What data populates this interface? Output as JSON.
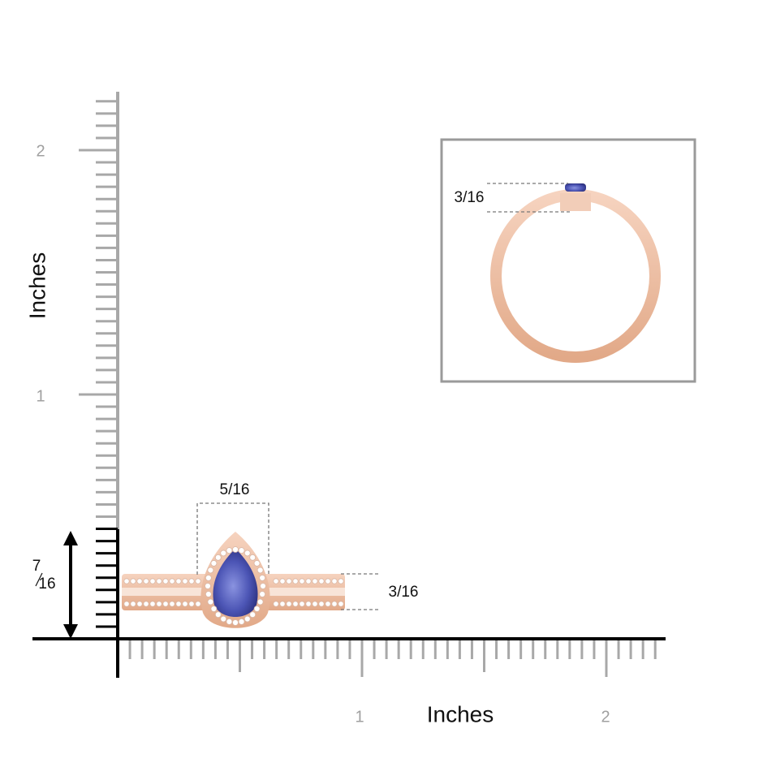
{
  "y_axis": {
    "label": "Inches",
    "ticks": [
      "1",
      "2"
    ]
  },
  "x_axis": {
    "label": "Inches",
    "ticks": [
      "1",
      "2"
    ]
  },
  "dimensions": {
    "top_width": "5/16",
    "band_height": "3/16",
    "total_height": {
      "numerator": "7",
      "denominator": "16"
    }
  },
  "inset": {
    "setting_height": "3/16"
  }
}
